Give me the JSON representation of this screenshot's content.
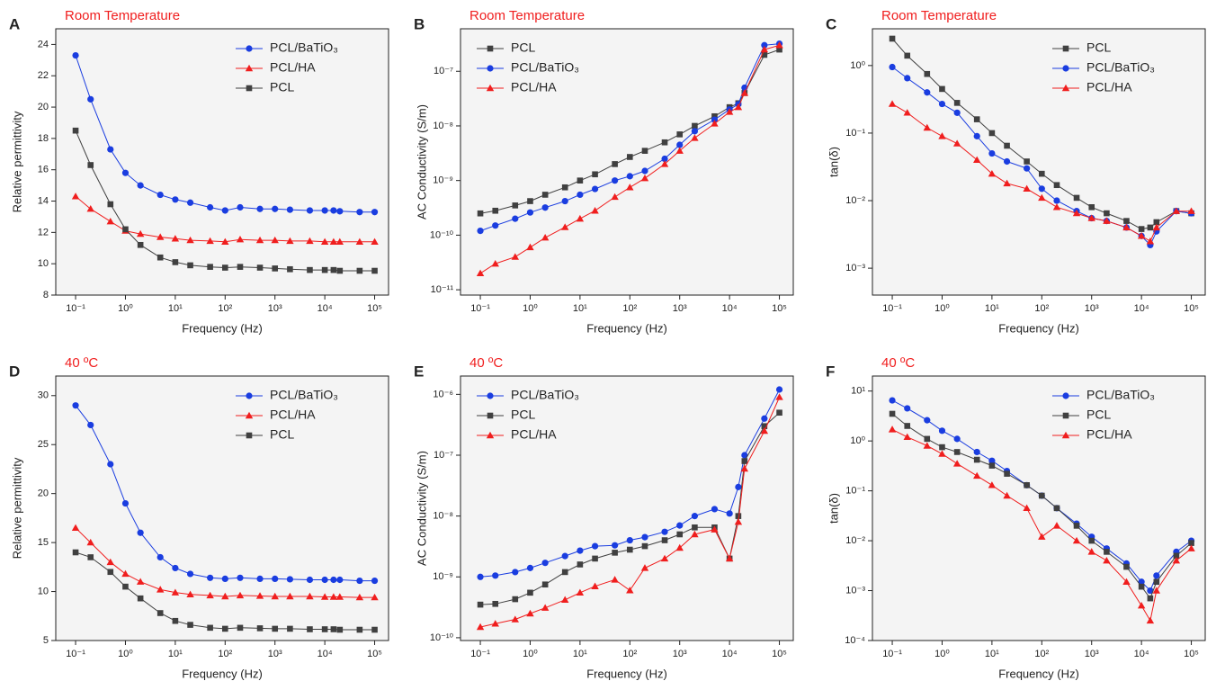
{
  "chart_data": [
    {
      "type": "line",
      "panel": "A",
      "title": "Room Temperature",
      "xlabel": "Frequency (Hz)",
      "ylabel": "Relative permittivity",
      "log_x": true,
      "log_y": false,
      "legend": "upper right",
      "x": [
        0.1,
        0.2,
        0.5,
        1,
        2,
        5,
        10,
        20,
        50,
        100,
        200,
        500,
        1000,
        2000,
        5000,
        10000,
        15000,
        20000,
        50000,
        100000
      ],
      "xlim": [
        0.04,
        190000
      ],
      "xticks": [
        {
          "value": 0.1,
          "label": "10⁻¹"
        },
        {
          "value": 1,
          "label": "10⁰"
        },
        {
          "value": 10,
          "label": "10¹"
        },
        {
          "value": 100,
          "label": "10²"
        },
        {
          "value": 1000,
          "label": "10³"
        },
        {
          "value": 10000,
          "label": "10⁴"
        },
        {
          "value": 100000,
          "label": "10⁵"
        }
      ],
      "ylim": [
        8,
        25
      ],
      "yticks": [
        8,
        10,
        12,
        14,
        16,
        18,
        20,
        22,
        24
      ],
      "series": [
        {
          "name": "PCL/BaTiO₃",
          "color": "#1a3de0",
          "marker": "circle",
          "values": [
            23.3,
            20.5,
            17.3,
            15.8,
            15.0,
            14.4,
            14.1,
            13.9,
            13.6,
            13.4,
            13.6,
            13.5,
            13.5,
            13.45,
            13.4,
            13.4,
            13.4,
            13.35,
            13.3,
            13.3
          ]
        },
        {
          "name": "PCL/HA",
          "color": "#f01e1e",
          "marker": "triangle",
          "values": [
            14.3,
            13.5,
            12.7,
            12.1,
            11.9,
            11.7,
            11.6,
            11.5,
            11.45,
            11.4,
            11.55,
            11.5,
            11.5,
            11.45,
            11.45,
            11.4,
            11.4,
            11.4,
            11.4,
            11.4
          ]
        },
        {
          "name": "PCL",
          "color": "#404040",
          "marker": "square",
          "values": [
            18.5,
            16.3,
            13.8,
            12.2,
            11.2,
            10.4,
            10.1,
            9.9,
            9.8,
            9.75,
            9.8,
            9.75,
            9.7,
            9.65,
            9.6,
            9.6,
            9.6,
            9.55,
            9.55,
            9.55
          ]
        }
      ]
    },
    {
      "type": "line",
      "panel": "B",
      "title": "Room Temperature",
      "xlabel": "Frequency (Hz)",
      "ylabel": "AC Conductivity (S/m)",
      "log_x": true,
      "log_y": true,
      "legend": "upper left",
      "x": [
        0.1,
        0.2,
        0.5,
        1,
        2,
        5,
        10,
        20,
        50,
        100,
        200,
        500,
        1000,
        2000,
        5000,
        10000,
        15000,
        20000,
        50000,
        100000
      ],
      "xlim": [
        0.04,
        190000
      ],
      "xticks": [
        {
          "value": 0.1,
          "label": "10⁻¹"
        },
        {
          "value": 1,
          "label": "10⁰"
        },
        {
          "value": 10,
          "label": "10¹"
        },
        {
          "value": 100,
          "label": "10²"
        },
        {
          "value": 1000,
          "label": "10³"
        },
        {
          "value": 10000,
          "label": "10⁴"
        },
        {
          "value": 100000,
          "label": "10⁵"
        }
      ],
      "ylim": [
        8e-12,
        6e-07
      ],
      "yticks": [
        {
          "value": 1e-11,
          "label": "10⁻¹¹"
        },
        {
          "value": 1e-10,
          "label": "10⁻¹⁰"
        },
        {
          "value": 1e-09,
          "label": "10⁻⁹"
        },
        {
          "value": 1e-08,
          "label": "10⁻⁸"
        },
        {
          "value": 1e-07,
          "label": "10⁻⁷"
        }
      ],
      "series": [
        {
          "name": "PCL",
          "color": "#404040",
          "marker": "square",
          "values": [
            2.5e-10,
            2.8e-10,
            3.5e-10,
            4.2e-10,
            5.5e-10,
            7.5e-10,
            1e-09,
            1.3e-09,
            2e-09,
            2.7e-09,
            3.5e-09,
            5e-09,
            7e-09,
            1e-08,
            1.5e-08,
            2.2e-08,
            2.6e-08,
            4e-08,
            2e-07,
            2.5e-07
          ]
        },
        {
          "name": "PCL/BaTiO₃",
          "color": "#1a3de0",
          "marker": "circle",
          "values": [
            1.2e-10,
            1.5e-10,
            2e-10,
            2.6e-10,
            3.2e-10,
            4.2e-10,
            5.5e-10,
            7e-10,
            1e-09,
            1.2e-09,
            1.5e-09,
            2.5e-09,
            4.5e-09,
            8e-09,
            1.3e-08,
            2e-08,
            2.5e-08,
            5e-08,
            3e-07,
            3.2e-07
          ]
        },
        {
          "name": "PCL/HA",
          "color": "#f01e1e",
          "marker": "triangle",
          "values": [
            2e-11,
            3e-11,
            4e-11,
            6e-11,
            9e-11,
            1.4e-10,
            2e-10,
            2.8e-10,
            5e-10,
            7.5e-10,
            1.1e-09,
            2e-09,
            3.5e-09,
            6e-09,
            1.1e-08,
            1.8e-08,
            2.2e-08,
            4e-08,
            2.5e-07,
            3e-07
          ]
        }
      ]
    },
    {
      "type": "line",
      "panel": "C",
      "title": "Room Temperature",
      "xlabel": "Frequency (Hz)",
      "ylabel": "tan(δ)",
      "log_x": true,
      "log_y": true,
      "legend": "upper right",
      "x": [
        0.1,
        0.2,
        0.5,
        1,
        2,
        5,
        10,
        20,
        50,
        100,
        200,
        500,
        1000,
        2000,
        5000,
        10000,
        15000,
        20000,
        50000,
        100000
      ],
      "xlim": [
        0.04,
        190000
      ],
      "xticks": [
        {
          "value": 0.1,
          "label": "10⁻¹"
        },
        {
          "value": 1,
          "label": "10⁰"
        },
        {
          "value": 10,
          "label": "10¹"
        },
        {
          "value": 100,
          "label": "10²"
        },
        {
          "value": 1000,
          "label": "10³"
        },
        {
          "value": 10000,
          "label": "10⁴"
        },
        {
          "value": 100000,
          "label": "10⁵"
        }
      ],
      "ylim": [
        0.0004,
        3.5
      ],
      "yticks": [
        {
          "value": 0.001,
          "label": "10⁻³"
        },
        {
          "value": 0.01,
          "label": "10⁻²"
        },
        {
          "value": 0.1,
          "label": "10⁻¹"
        },
        {
          "value": 1,
          "label": "10⁰"
        }
      ],
      "series": [
        {
          "name": "PCL",
          "color": "#404040",
          "marker": "square",
          "values": [
            2.5,
            1.4,
            0.75,
            0.45,
            0.28,
            0.16,
            0.1,
            0.065,
            0.038,
            0.025,
            0.017,
            0.011,
            0.008,
            0.0065,
            0.005,
            0.0038,
            0.004,
            0.0048,
            0.007,
            0.0065
          ]
        },
        {
          "name": "PCL/BaTiO₃",
          "color": "#1a3de0",
          "marker": "circle",
          "values": [
            0.95,
            0.65,
            0.4,
            0.27,
            0.2,
            0.09,
            0.05,
            0.038,
            0.03,
            0.015,
            0.01,
            0.007,
            0.0055,
            0.005,
            0.004,
            0.003,
            0.0022,
            0.0035,
            0.007,
            0.0065
          ]
        },
        {
          "name": "PCL/HA",
          "color": "#f01e1e",
          "marker": "triangle",
          "values": [
            0.27,
            0.2,
            0.12,
            0.09,
            0.07,
            0.04,
            0.025,
            0.018,
            0.015,
            0.011,
            0.008,
            0.0065,
            0.0055,
            0.005,
            0.004,
            0.003,
            0.0025,
            0.004,
            0.007,
            0.007
          ]
        }
      ]
    },
    {
      "type": "line",
      "panel": "D",
      "title": "40 ºC",
      "xlabel": "Frequency (Hz)",
      "ylabel": "Relative permittivity",
      "log_x": true,
      "log_y": false,
      "legend": "upper right",
      "x": [
        0.1,
        0.2,
        0.5,
        1,
        2,
        5,
        10,
        20,
        50,
        100,
        200,
        500,
        1000,
        2000,
        5000,
        10000,
        15000,
        20000,
        50000,
        100000
      ],
      "xlim": [
        0.04,
        190000
      ],
      "xticks": [
        {
          "value": 0.1,
          "label": "10⁻¹"
        },
        {
          "value": 1,
          "label": "10⁰"
        },
        {
          "value": 10,
          "label": "10¹"
        },
        {
          "value": 100,
          "label": "10²"
        },
        {
          "value": 1000,
          "label": "10³"
        },
        {
          "value": 10000,
          "label": "10⁴"
        },
        {
          "value": 100000,
          "label": "10⁵"
        }
      ],
      "ylim": [
        5,
        32
      ],
      "yticks": [
        5,
        10,
        15,
        20,
        25,
        30
      ],
      "series": [
        {
          "name": "PCL/BaTiO₃",
          "color": "#1a3de0",
          "marker": "circle",
          "values": [
            29,
            27,
            23,
            19,
            16,
            13.5,
            12.4,
            11.8,
            11.4,
            11.3,
            11.4,
            11.3,
            11.3,
            11.25,
            11.2,
            11.2,
            11.2,
            11.2,
            11.1,
            11.1
          ]
        },
        {
          "name": "PCL/HA",
          "color": "#f01e1e",
          "marker": "triangle",
          "values": [
            16.5,
            15,
            13,
            11.8,
            11,
            10.2,
            9.9,
            9.7,
            9.6,
            9.5,
            9.6,
            9.55,
            9.5,
            9.5,
            9.5,
            9.45,
            9.45,
            9.45,
            9.4,
            9.4
          ]
        },
        {
          "name": "PCL",
          "color": "#404040",
          "marker": "square",
          "values": [
            14,
            13.5,
            12,
            10.5,
            9.3,
            7.8,
            7,
            6.6,
            6.3,
            6.2,
            6.3,
            6.25,
            6.2,
            6.2,
            6.15,
            6.15,
            6.15,
            6.1,
            6.1,
            6.1
          ]
        }
      ]
    },
    {
      "type": "line",
      "panel": "E",
      "title": "40 ºC",
      "xlabel": "Frequency (Hz)",
      "ylabel": "AC Conductivity (S/m)",
      "log_x": true,
      "log_y": true,
      "legend": "upper left",
      "x": [
        0.1,
        0.2,
        0.5,
        1,
        2,
        5,
        10,
        20,
        50,
        100,
        200,
        500,
        1000,
        2000,
        5000,
        10000,
        15000,
        20000,
        50000,
        100000
      ],
      "xlim": [
        0.04,
        190000
      ],
      "xticks": [
        {
          "value": 0.1,
          "label": "10⁻¹"
        },
        {
          "value": 1,
          "label": "10⁰"
        },
        {
          "value": 10,
          "label": "10¹"
        },
        {
          "value": 100,
          "label": "10²"
        },
        {
          "value": 1000,
          "label": "10³"
        },
        {
          "value": 10000,
          "label": "10⁴"
        },
        {
          "value": 100000,
          "label": "10⁵"
        }
      ],
      "ylim": [
        9e-11,
        2e-06
      ],
      "yticks": [
        {
          "value": 1e-10,
          "label": "10⁻¹⁰"
        },
        {
          "value": 1e-09,
          "label": "10⁻⁹"
        },
        {
          "value": 1e-08,
          "label": "10⁻⁸"
        },
        {
          "value": 1e-07,
          "label": "10⁻⁷"
        },
        {
          "value": 1e-06,
          "label": "10⁻⁶"
        }
      ],
      "series": [
        {
          "name": "PCL/BaTiO₃",
          "color": "#1a3de0",
          "marker": "circle",
          "values": [
            1e-09,
            1.05e-09,
            1.2e-09,
            1.4e-09,
            1.7e-09,
            2.2e-09,
            2.7e-09,
            3.2e-09,
            3.3e-09,
            4e-09,
            4.5e-09,
            5.5e-09,
            7e-09,
            1e-08,
            1.3e-08,
            1.1e-08,
            3e-08,
            1e-07,
            4e-07,
            1.2e-06
          ]
        },
        {
          "name": "PCL",
          "color": "#404040",
          "marker": "square",
          "values": [
            3.5e-10,
            3.6e-10,
            4.3e-10,
            5.5e-10,
            7.5e-10,
            1.2e-09,
            1.6e-09,
            2e-09,
            2.5e-09,
            2.8e-09,
            3.2e-09,
            4e-09,
            5e-09,
            6.5e-09,
            6.5e-09,
            2e-09,
            1e-08,
            8e-08,
            3e-07,
            5e-07
          ]
        },
        {
          "name": "PCL/HA",
          "color": "#f01e1e",
          "marker": "triangle",
          "values": [
            1.5e-10,
            1.7e-10,
            2e-10,
            2.5e-10,
            3.1e-10,
            4.2e-10,
            5.5e-10,
            7e-10,
            9e-10,
            6e-10,
            1.4e-09,
            2e-09,
            3e-09,
            5e-09,
            6e-09,
            2e-09,
            8e-09,
            6e-08,
            2.5e-07,
            9e-07
          ]
        }
      ]
    },
    {
      "type": "line",
      "panel": "F",
      "title": "40 ºC",
      "xlabel": "Frequency (Hz)",
      "ylabel": "tan(δ)",
      "log_x": true,
      "log_y": true,
      "legend": "upper right",
      "x": [
        0.1,
        0.2,
        0.5,
        1,
        2,
        5,
        10,
        20,
        50,
        100,
        200,
        500,
        1000,
        2000,
        5000,
        10000,
        15000,
        20000,
        50000,
        100000
      ],
      "xlim": [
        0.04,
        190000
      ],
      "xticks": [
        {
          "value": 0.1,
          "label": "10⁻¹"
        },
        {
          "value": 1,
          "label": "10⁰"
        },
        {
          "value": 10,
          "label": "10¹"
        },
        {
          "value": 100,
          "label": "10²"
        },
        {
          "value": 1000,
          "label": "10³"
        },
        {
          "value": 10000,
          "label": "10⁴"
        },
        {
          "value": 100000,
          "label": "10⁵"
        }
      ],
      "ylim": [
        0.0001,
        20
      ],
      "yticks": [
        {
          "value": 0.0001,
          "label": "10⁻⁴"
        },
        {
          "value": 0.001,
          "label": "10⁻³"
        },
        {
          "value": 0.01,
          "label": "10⁻²"
        },
        {
          "value": 0.1,
          "label": "10⁻¹"
        },
        {
          "value": 1,
          "label": "10⁰"
        },
        {
          "value": 10,
          "label": "10¹"
        }
      ],
      "series": [
        {
          "name": "PCL/BaTiO₃",
          "color": "#1a3de0",
          "marker": "circle",
          "values": [
            6.5,
            4.5,
            2.6,
            1.6,
            1.1,
            0.6,
            0.4,
            0.25,
            0.13,
            0.08,
            0.045,
            0.022,
            0.012,
            0.007,
            0.0035,
            0.0015,
            0.001,
            0.002,
            0.006,
            0.01
          ]
        },
        {
          "name": "PCL",
          "color": "#404040",
          "marker": "square",
          "values": [
            3.5,
            2,
            1.1,
            0.75,
            0.6,
            0.42,
            0.32,
            0.22,
            0.13,
            0.08,
            0.045,
            0.02,
            0.01,
            0.006,
            0.003,
            0.0012,
            0.0007,
            0.0015,
            0.005,
            0.009
          ]
        },
        {
          "name": "PCL/HA",
          "color": "#f01e1e",
          "marker": "triangle",
          "values": [
            1.7,
            1.2,
            0.8,
            0.55,
            0.35,
            0.2,
            0.13,
            0.08,
            0.045,
            0.012,
            0.02,
            0.01,
            0.006,
            0.004,
            0.0015,
            0.0005,
            0.00025,
            0.001,
            0.004,
            0.007
          ]
        }
      ]
    }
  ]
}
